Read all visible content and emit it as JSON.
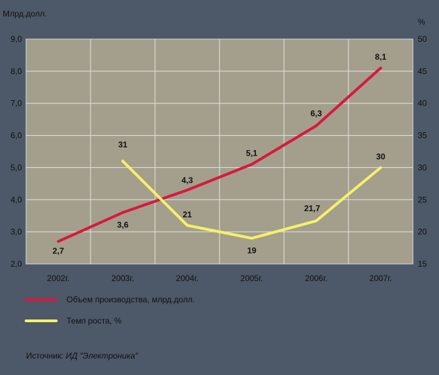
{
  "chart_data": {
    "type": "line",
    "categories": [
      "2002г.",
      "2003г.",
      "2004г.",
      "2005г.",
      "2006г.",
      "2007г."
    ],
    "left_axis": {
      "label": "Млрд.долл.",
      "ylim": [
        2.0,
        9.0
      ],
      "ticks": [
        "2,0",
        "3,0",
        "4,0",
        "5,0",
        "6,0",
        "7,0",
        "8,0",
        "9,0"
      ]
    },
    "right_axis": {
      "label": "%",
      "ylim": [
        15,
        50
      ],
      "ticks": [
        "15",
        "20",
        "25",
        "30",
        "35",
        "40",
        "45",
        "50"
      ]
    },
    "series": [
      {
        "name": "Объем производства, млрд.долл.",
        "axis": "left",
        "color": "#d7193f",
        "values": [
          2.7,
          3.6,
          4.3,
          5.1,
          6.3,
          8.1
        ],
        "labels": [
          "2,7",
          "3,6",
          "4,3",
          "5,1",
          "6,3",
          "8,1"
        ]
      },
      {
        "name": "Темп роста, %",
        "axis": "right",
        "color": "#f6f06a",
        "values": [
          null,
          31,
          21,
          19,
          21.7,
          30
        ],
        "labels": [
          null,
          "31",
          "21",
          "19",
          "21,7",
          "30"
        ]
      }
    ],
    "grid": true,
    "legend_position": "bottom-left",
    "plot_background": "#a39f8c"
  },
  "source": {
    "prefix": "Источник:",
    "name": "ИД \"Электроника\""
  }
}
